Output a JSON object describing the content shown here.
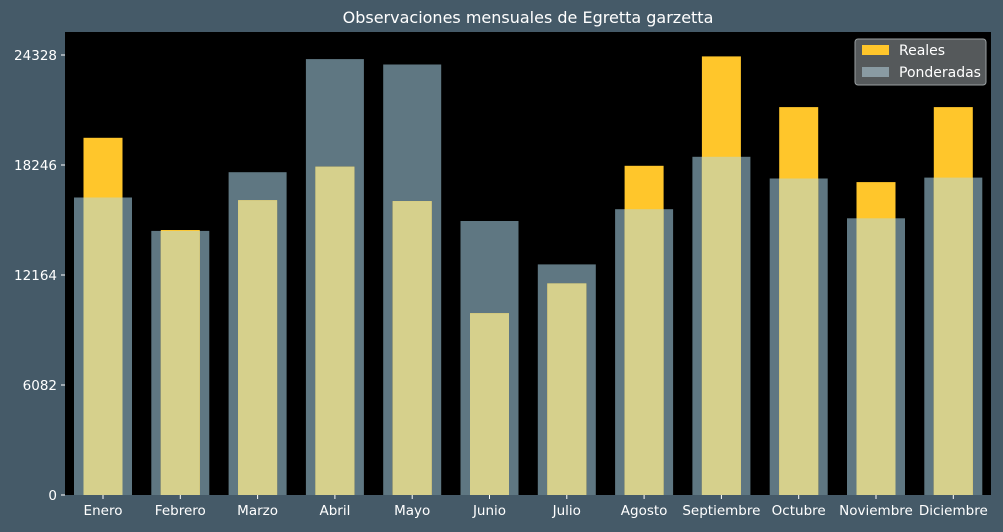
{
  "chart_data": {
    "type": "bar",
    "title": "Observaciones mensuales de Egretta garzetta",
    "xlabel": "",
    "ylabel": "",
    "categories": [
      "Enero",
      "Febrero",
      "Marzo",
      "Abril",
      "Mayo",
      "Junio",
      "Julio",
      "Agosto",
      "Septiembre",
      "Octubre",
      "Noviembre",
      "Diciembre"
    ],
    "series": [
      {
        "name": "Ponderadas",
        "values": [
          16450,
          14600,
          17850,
          24100,
          23800,
          15150,
          12750,
          15800,
          18700,
          17500,
          15300,
          17550
        ],
        "color": "#5f7782"
      },
      {
        "name": "Reales",
        "values": [
          19750,
          14650,
          16300,
          18150,
          16250,
          10050,
          11700,
          18200,
          24250,
          21450,
          17300,
          21450
        ],
        "color": "#ffc62b"
      }
    ],
    "overlap_color": "#d6d08c",
    "yticks": [
      0,
      6082,
      12164,
      18246,
      24328
    ],
    "ylim": [
      0,
      24328
    ],
    "legend": {
      "position": "top-right",
      "entries": [
        {
          "label": "Reales",
          "color": "#ffc62b"
        },
        {
          "label": "Ponderadas",
          "color": "#8a9ba3"
        }
      ]
    },
    "grid": false,
    "colors": {
      "figure_background": "#455a68",
      "plot_background": "#000000",
      "text": "#ffffff"
    }
  }
}
